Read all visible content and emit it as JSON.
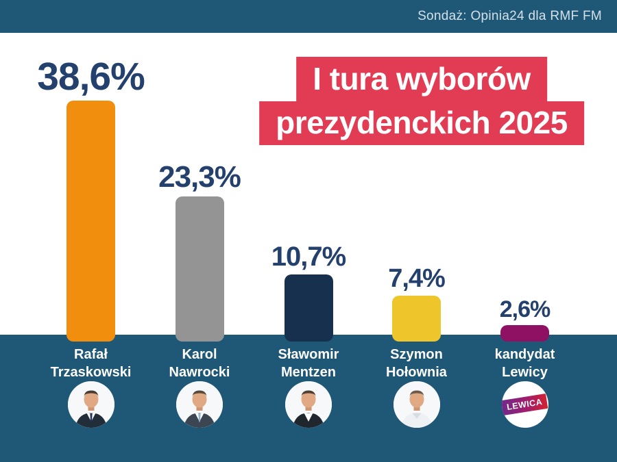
{
  "header": {
    "source": "Sondaż: Opinia24 dla RMF FM"
  },
  "title": {
    "line1": "I tura wyborów",
    "line2": "prezydenckich 2025"
  },
  "candidates": [
    {
      "name_line1": "Rafał",
      "name_line2": "Trzaskowski",
      "value": 38.6,
      "value_label": "38,6%",
      "bar_color": "#f18e0e",
      "avatar": "photo-suit-tie"
    },
    {
      "name_line1": "Karol",
      "name_line2": "Nawrocki",
      "value": 23.3,
      "value_label": "23,3%",
      "bar_color": "#949494",
      "avatar": "photo-suit-tie"
    },
    {
      "name_line1": "Sławomir",
      "name_line2": "Mentzen",
      "value": 10.7,
      "value_label": "10,7%",
      "bar_color": "#17304e",
      "avatar": "photo-suit-open"
    },
    {
      "name_line1": "Szymon",
      "name_line2": "Hołownia",
      "value": 7.4,
      "value_label": "7,4%",
      "bar_color": "#eec62b",
      "avatar": "photo-shirt"
    },
    {
      "name_line1": "kandydat",
      "name_line2": "Lewicy",
      "value": 2.6,
      "value_label": "2,6%",
      "bar_color": "#8e1164",
      "avatar": "lewica-logo",
      "logo_text": "LEWICA"
    }
  ],
  "colors": {
    "band_navy": "#1f5876",
    "title_red": "#e23b54",
    "value_text_navy": "#24406c",
    "bar_orange": "#f18e0e",
    "bar_gray": "#949494",
    "bar_dark_navy": "#17304e",
    "bar_yellow": "#eec62b",
    "bar_purple": "#8e1164"
  },
  "chart_data": {
    "type": "bar",
    "title": "I tura wyborów prezydenckich 2025",
    "source": "Sondaż: Opinia24 dla RMF FM",
    "categories": [
      "Rafał Trzaskowski",
      "Karol Nawrocki",
      "Sławomir Mentzen",
      "Szymon Hołownia",
      "kandydat Lewicy"
    ],
    "values": [
      38.6,
      23.3,
      10.7,
      7.4,
      2.6
    ],
    "value_labels": [
      "38,6%",
      "23,3%",
      "10,7%",
      "7,4%",
      "2,6%"
    ],
    "unit": "%",
    "bar_colors": [
      "#f18e0e",
      "#949494",
      "#17304e",
      "#eec62b",
      "#8e1164"
    ],
    "ylim": [
      0,
      43
    ],
    "grid": false,
    "legend": false,
    "value_labels_position": "above-bars",
    "category_labels_position": "below-bars-on-navy-band"
  }
}
